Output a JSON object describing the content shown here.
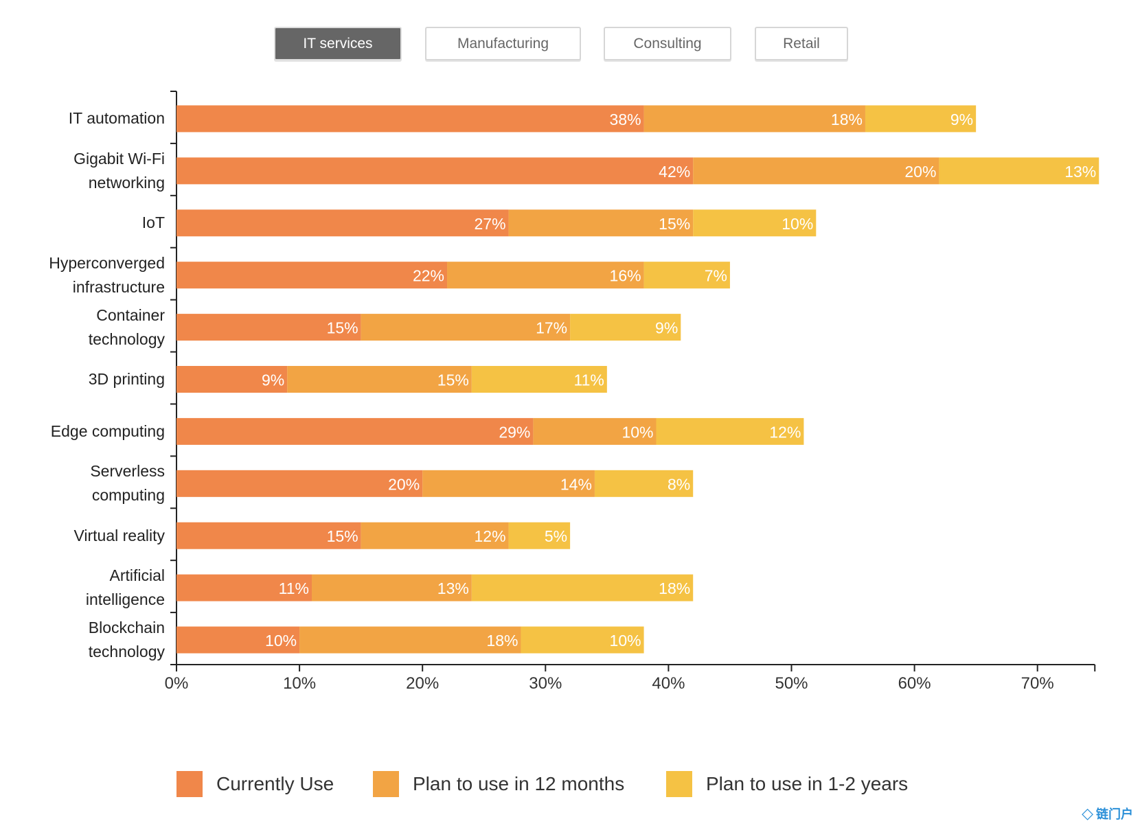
{
  "tabs": [
    {
      "label": "IT services",
      "active": true
    },
    {
      "label": "Manufacturing",
      "active": false
    },
    {
      "label": "Consulting",
      "active": false
    },
    {
      "label": "Retail",
      "active": false
    }
  ],
  "chart_data": {
    "type": "bar",
    "orientation": "horizontal",
    "stacked": true,
    "categories": [
      "IT automation",
      "Gigabit Wi-Fi networking",
      "IoT",
      "Hyperconverged infrastructure",
      "Container technology",
      "3D printing",
      "Edge computing",
      "Serverless computing",
      "Virtual reality",
      "Artificial intelligence",
      "Blockchain technology"
    ],
    "series": [
      {
        "name": "Currently Use",
        "color": "#F0874A",
        "values": [
          38,
          42,
          27,
          22,
          15,
          9,
          29,
          20,
          15,
          11,
          10
        ]
      },
      {
        "name": "Plan to use in 12 months",
        "color": "#F2A444",
        "values": [
          18,
          20,
          15,
          16,
          17,
          15,
          10,
          14,
          12,
          13,
          18
        ]
      },
      {
        "name": "Plan to use in 1-2 years",
        "color": "#F5C244",
        "values": [
          9,
          13,
          10,
          7,
          9,
          11,
          12,
          8,
          5,
          18,
          10
        ]
      }
    ],
    "xticks": [
      "0%",
      "10%",
      "20%",
      "30%",
      "40%",
      "50%",
      "60%",
      "70%"
    ],
    "xlim": [
      0,
      75
    ],
    "legend_position": "bottom",
    "grid": false
  },
  "watermark": "链门户"
}
